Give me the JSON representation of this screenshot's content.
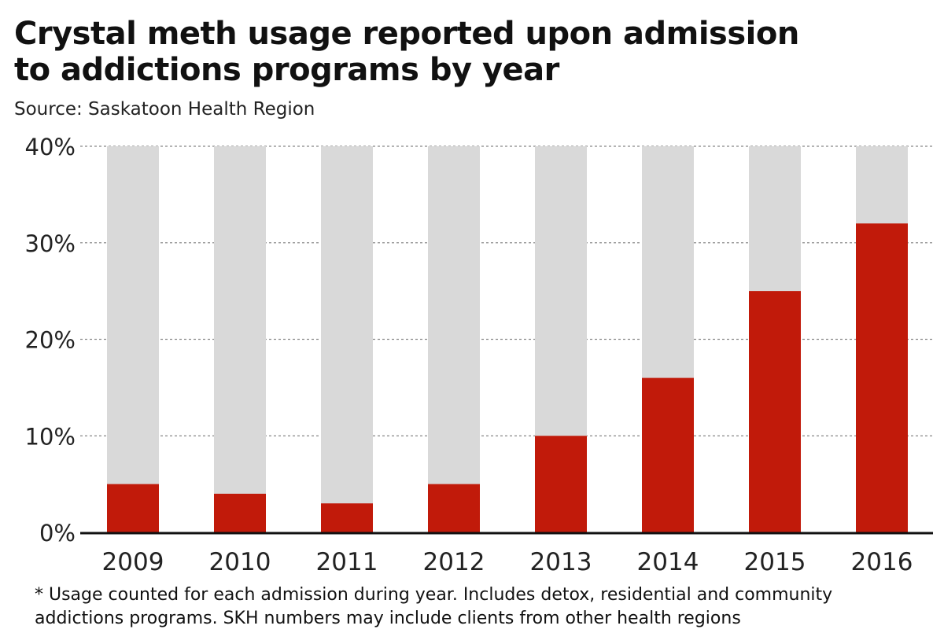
{
  "title_line1": "Crystal meth usage reported upon admission",
  "title_line2": "to addictions programs by year",
  "subtitle": "Source: Saskatoon Health Region",
  "footnote_line1": "* Usage counted for each admission during year. Includes detox, residential and community",
  "footnote_line2": "addictions programs. SKH numbers may include clients from other health regions",
  "colors": {
    "bar": "#c11a0a",
    "background_bar": "#d9d9d9",
    "gridline": "#888888",
    "axis": "#111111"
  },
  "chart_data": {
    "type": "bar",
    "categories": [
      "2009",
      "2010",
      "2011",
      "2012",
      "2013",
      "2014",
      "2015",
      "2016"
    ],
    "values": [
      5,
      4,
      3,
      5,
      10,
      16,
      25,
      32
    ],
    "y_ticks": [
      "0%",
      "10%",
      "20%",
      "30%",
      "40%"
    ],
    "ylim": [
      0,
      40
    ],
    "grid": true,
    "background_bars": true
  }
}
